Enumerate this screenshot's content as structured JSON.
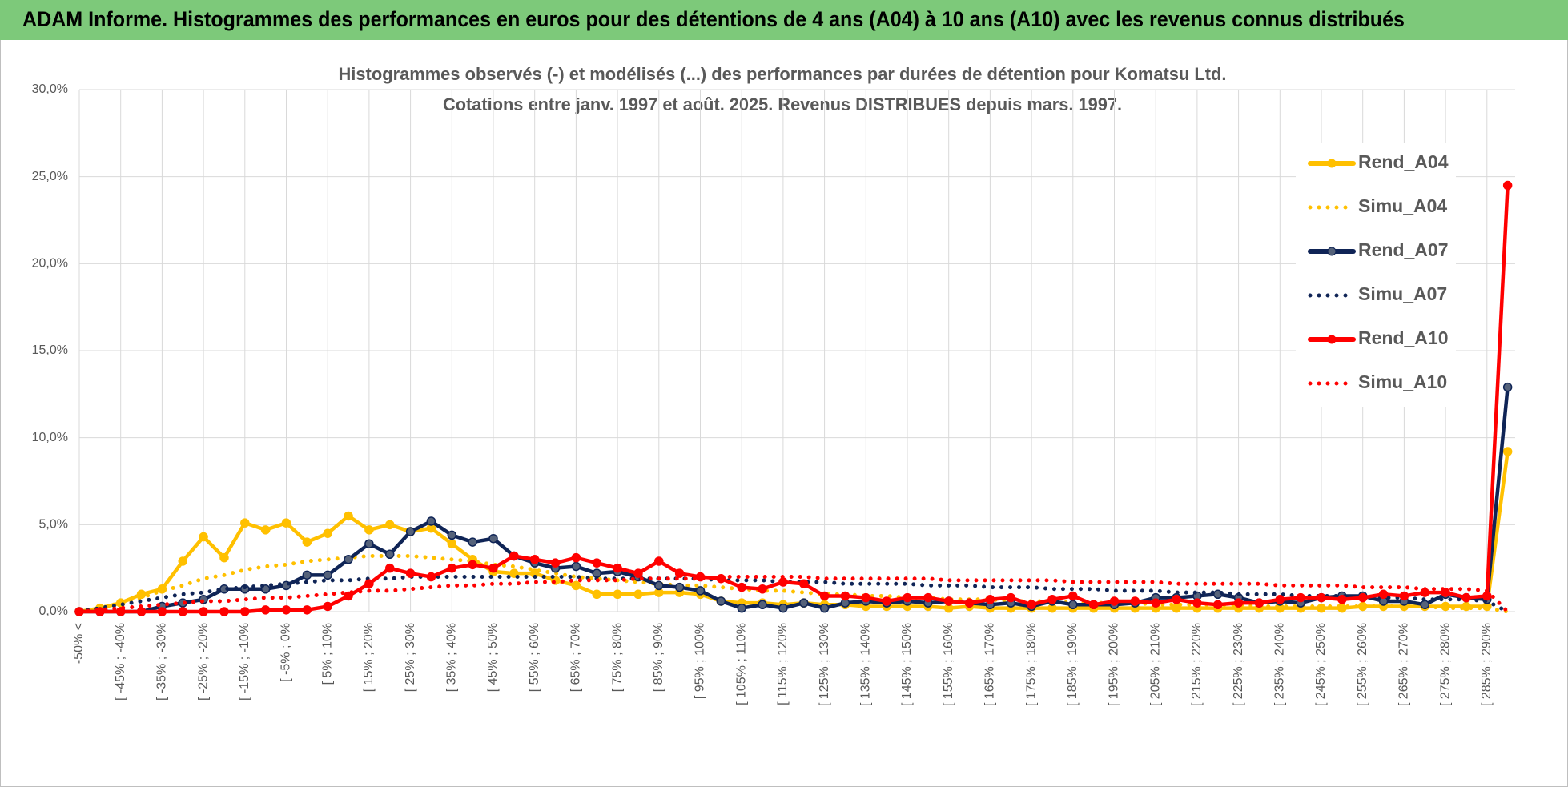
{
  "header": {
    "title": "ADAM Informe. Histogrammes des performances en euros pour des détentions de 4 ans (A04) à 10 ans (A10) avec les revenus connus distribués"
  },
  "chart_data": {
    "type": "line",
    "title": "Histogrammes observés (-) et modélisés (...) des performances par durées de détention pour Komatsu Ltd.",
    "subtitle": "Cotations entre janv. 1997 et août. 2025. Revenus DISTRIBUES depuis mars. 1997.",
    "categories": [
      "-50% <",
      null,
      "[ -45% ; -40%",
      null,
      "[ -35% ; -30%",
      null,
      "[ -25% ; -20%",
      null,
      "[ -15% ; -10%",
      null,
      "[ -5% ; 0%",
      null,
      "[ 5% ; 10%",
      null,
      "[ 15% ; 20%",
      null,
      "[ 25% ; 30%",
      null,
      "[ 35% ; 40%",
      null,
      "[ 45% ; 50%",
      null,
      "[ 55% ; 60%",
      null,
      "[ 65% ; 70%",
      null,
      "[ 75% ; 80%",
      null,
      "[ 85% ; 90%",
      null,
      "[ 95% ; 100%",
      null,
      "[ 105% ; 110%",
      null,
      "[ 115% ; 120%",
      null,
      "[ 125% ; 130%",
      null,
      "[ 135% ; 140%",
      null,
      "[ 145% ; 150%",
      null,
      "[ 155% ; 160%",
      null,
      "[ 165% ; 170%",
      null,
      "[ 175% ; 180%",
      null,
      "[ 185% ; 190%",
      null,
      "[ 195% ; 200%",
      null,
      "[ 205% ; 210%",
      null,
      "[ 215% ; 220%",
      null,
      "[ 225% ; 230%",
      null,
      "[ 235% ; 240%",
      null,
      "[ 245% ; 250%",
      null,
      "[ 255% ; 260%",
      null,
      "[ 265% ; 270%",
      null,
      "[ 275% ; 280%",
      null,
      "[ 285% ; 290%",
      null
    ],
    "series": [
      {
        "name": "Rend_A04",
        "color": "#ffc000",
        "dash": "solid",
        "markers": true,
        "values": [
          0,
          0.2,
          0.5,
          1.0,
          1.3,
          2.9,
          4.3,
          3.1,
          5.1,
          4.7,
          5.1,
          4.0,
          4.5,
          5.5,
          4.7,
          5.0,
          4.6,
          4.8,
          3.9,
          3.0,
          2.3,
          2.2,
          2.2,
          1.8,
          1.5,
          1.0,
          1.0,
          1.0,
          1.1,
          1.1,
          1.0,
          0.6,
          0.5,
          0.5,
          0.4,
          0.5,
          0.4,
          0.4,
          0.3,
          0.3,
          0.3,
          0.3,
          0.2,
          0.3,
          0.2,
          0.2,
          0.2,
          0.2,
          0.2,
          0.2,
          0.2,
          0.2,
          0.2,
          0.2,
          0.2,
          0.2,
          0.2,
          0.2,
          0.2,
          0.2,
          0.2,
          0.2,
          0.3,
          0.3,
          0.3,
          0.3,
          0.3,
          0.3,
          0.3,
          9.2
        ]
      },
      {
        "name": "Simu_A04",
        "color": "#ffc000",
        "dash": "dotted",
        "markers": false,
        "values": [
          0,
          0.2,
          0.5,
          0.8,
          1.2,
          1.5,
          1.9,
          2.1,
          2.4,
          2.6,
          2.7,
          2.9,
          3.0,
          3.1,
          3.2,
          3.2,
          3.2,
          3.1,
          3.0,
          2.9,
          2.7,
          2.6,
          2.4,
          2.2,
          2.0,
          1.9,
          1.8,
          1.7,
          1.6,
          1.5,
          1.5,
          1.4,
          1.3,
          1.2,
          1.2,
          1.1,
          1.0,
          1.0,
          0.9,
          0.9,
          0.8,
          0.8,
          0.7,
          0.7,
          0.7,
          0.6,
          0.6,
          0.6,
          0.5,
          0.5,
          0.5,
          0.5,
          0.4,
          0.4,
          0.4,
          0.4,
          0.4,
          0.3,
          0.3,
          0.3,
          0.3,
          0.3,
          0.3,
          0.3,
          0.3,
          0.3,
          0.2,
          0.2,
          0.2,
          0
        ]
      },
      {
        "name": "Rend_A07",
        "color": "#0f2456",
        "dash": "solid",
        "markers": true,
        "values": [
          0,
          0,
          0,
          0,
          0.3,
          0.5,
          0.7,
          1.3,
          1.3,
          1.3,
          1.5,
          2.1,
          2.1,
          3.0,
          3.9,
          3.3,
          4.6,
          5.2,
          4.4,
          4.0,
          4.2,
          3.2,
          2.8,
          2.5,
          2.6,
          2.2,
          2.3,
          2.0,
          1.5,
          1.4,
          1.2,
          0.6,
          0.2,
          0.4,
          0.2,
          0.5,
          0.2,
          0.5,
          0.6,
          0.5,
          0.6,
          0.5,
          0.6,
          0.5,
          0.4,
          0.5,
          0.3,
          0.6,
          0.4,
          0.4,
          0.4,
          0.5,
          0.8,
          0.8,
          0.9,
          1.0,
          0.8,
          0.5,
          0.6,
          0.5,
          0.8,
          0.9,
          0.9,
          0.6,
          0.6,
          0.4,
          1.0,
          0.8,
          0.7,
          12.9
        ]
      },
      {
        "name": "Simu_A07",
        "color": "#0f2456",
        "dash": "dotted",
        "markers": false,
        "values": [
          0,
          0.2,
          0.4,
          0.6,
          0.8,
          1.0,
          1.1,
          1.3,
          1.4,
          1.5,
          1.6,
          1.7,
          1.8,
          1.8,
          1.9,
          1.9,
          2.0,
          2.0,
          2.0,
          2.0,
          2.0,
          2.0,
          2.0,
          2.0,
          2.0,
          1.9,
          1.9,
          1.9,
          1.9,
          1.9,
          1.9,
          1.8,
          1.8,
          1.8,
          1.7,
          1.7,
          1.7,
          1.6,
          1.6,
          1.6,
          1.6,
          1.5,
          1.5,
          1.5,
          1.4,
          1.4,
          1.4,
          1.3,
          1.3,
          1.3,
          1.2,
          1.2,
          1.2,
          1.1,
          1.1,
          1.1,
          1.0,
          1.0,
          1.0,
          0.9,
          0.9,
          0.9,
          0.8,
          0.8,
          0.8,
          0.7,
          0.7,
          0.7,
          0.6,
          0
        ]
      },
      {
        "name": "Rend_A10",
        "color": "#ff0000",
        "dash": "solid",
        "markers": true,
        "values": [
          0,
          0,
          0,
          0,
          0,
          0,
          0,
          0,
          0,
          0.1,
          0.1,
          0.1,
          0.3,
          0.9,
          1.6,
          2.5,
          2.2,
          2.0,
          2.5,
          2.7,
          2.5,
          3.2,
          3.0,
          2.8,
          3.1,
          2.8,
          2.5,
          2.2,
          2.9,
          2.2,
          2.0,
          1.9,
          1.4,
          1.3,
          1.7,
          1.6,
          0.9,
          0.9,
          0.8,
          0.6,
          0.8,
          0.8,
          0.6,
          0.5,
          0.7,
          0.8,
          0.4,
          0.7,
          0.9,
          0.4,
          0.6,
          0.6,
          0.5,
          0.7,
          0.5,
          0.4,
          0.5,
          0.5,
          0.7,
          0.8,
          0.8,
          0.7,
          0.8,
          1.0,
          0.9,
          1.1,
          1.1,
          0.8,
          0.9,
          24.5
        ]
      },
      {
        "name": "Simu_A10",
        "color": "#ff0000",
        "dash": "dotted",
        "markers": false,
        "values": [
          0,
          0.1,
          0.2,
          0.3,
          0.4,
          0.5,
          0.6,
          0.6,
          0.7,
          0.8,
          0.8,
          0.9,
          1.0,
          1.1,
          1.2,
          1.2,
          1.3,
          1.4,
          1.5,
          1.5,
          1.6,
          1.6,
          1.7,
          1.7,
          1.8,
          1.8,
          1.8,
          1.9,
          1.9,
          1.9,
          1.9,
          2.0,
          2.0,
          2.0,
          2.0,
          2.0,
          1.9,
          1.9,
          1.9,
          1.9,
          1.9,
          1.9,
          1.8,
          1.8,
          1.8,
          1.8,
          1.8,
          1.8,
          1.7,
          1.7,
          1.7,
          1.7,
          1.7,
          1.6,
          1.6,
          1.6,
          1.6,
          1.6,
          1.5,
          1.5,
          1.5,
          1.5,
          1.4,
          1.4,
          1.4,
          1.3,
          1.3,
          1.3,
          1.2,
          0
        ]
      }
    ],
    "ylim": [
      0,
      30
    ],
    "yticks": [
      {
        "value": 0,
        "label": "0,0%"
      },
      {
        "value": 5,
        "label": "5,0%"
      },
      {
        "value": 10,
        "label": "10,0%"
      },
      {
        "value": 15,
        "label": "15,0%"
      },
      {
        "value": 20,
        "label": "20,0%"
      },
      {
        "value": 25,
        "label": "25,0%"
      },
      {
        "value": 30,
        "label": "30,0%"
      }
    ],
    "grid": true,
    "legend": "right"
  }
}
